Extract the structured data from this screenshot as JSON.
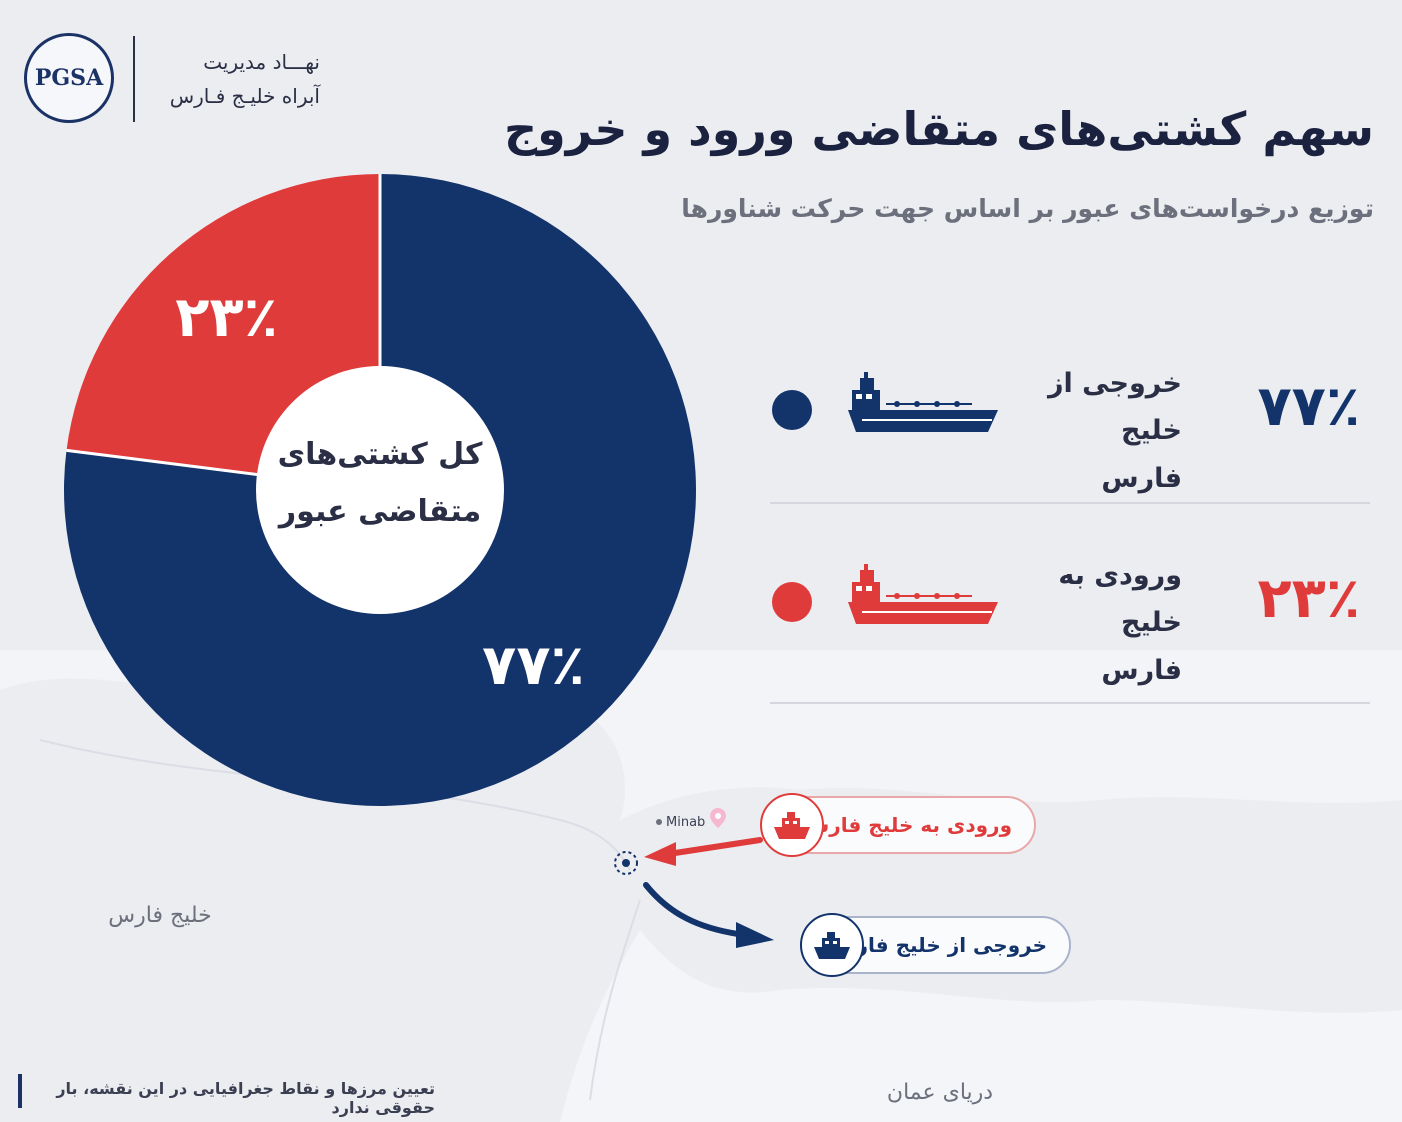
{
  "header": {
    "logo_text": "PGSA",
    "org_name_line1": "نهـــاد مدیریت",
    "org_name_line2": "آبراه خلیـج فـارس"
  },
  "chart_data": {
    "type": "pie",
    "style": "donut",
    "title": "سهم کشتی‌های متقاضی ورود و خروج",
    "subtitle": "توزیع درخواست‌های عبور بر اساس جهت حرکت شناورها",
    "center_label_line1": "کل کشتی‌های",
    "center_label_line2": "متقاضی عبور",
    "slices": [
      {
        "name": "خروجی از خلیج فارس",
        "name_line1": "خروجی از",
        "name_line2": "خلیج فارس",
        "value": 77,
        "label": "۷۷٪",
        "color": "#13336b"
      },
      {
        "name": "ورودی به خلیج فارس",
        "name_line1": "ورودی به",
        "name_line2": "خلیج فارس",
        "value": 23,
        "label": "۲۳٪",
        "color": "#e03b3b"
      }
    ],
    "legend_position": "right"
  },
  "map": {
    "labels": {
      "persian_gulf": "خلیج فارس",
      "gulf_of_oman": "دریای عمان",
      "city": "Minab"
    },
    "callouts": {
      "inbound": "ورودی به خلیج فارس",
      "outbound": "خروجی از خلیج فارس"
    },
    "colors": {
      "inbound": "#e03b3b",
      "outbound": "#13336b"
    }
  },
  "footer": {
    "disclaimer": "تعیین مرزها و نقاط جغرافیایی در این نقشه، بار حقوقی ندارد"
  }
}
